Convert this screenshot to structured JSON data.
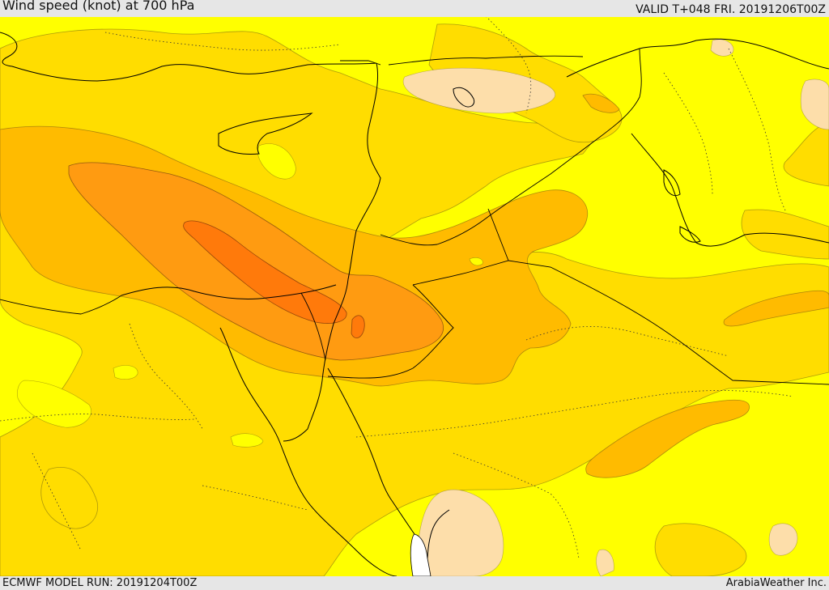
{
  "header": {
    "title": "Wind speed (knot) at 700 hPa",
    "valid": "VALID T+048 FRI. 20191206T00Z"
  },
  "footer": {
    "model_run": "ECMWF MODEL RUN: 20191204T00Z",
    "credit": "ArabiaWeather Inc."
  },
  "colors": {
    "background_light": "#ffff00",
    "calm_patches": "#fddeaa",
    "band_yellow": "#ffdd00",
    "band_amber": "#ffbb00",
    "band_orange": "#ff9b11",
    "band_deep_orange": "#ff7a0b",
    "water": "#ffffff",
    "border_lines": "#000000"
  },
  "legend": null
}
